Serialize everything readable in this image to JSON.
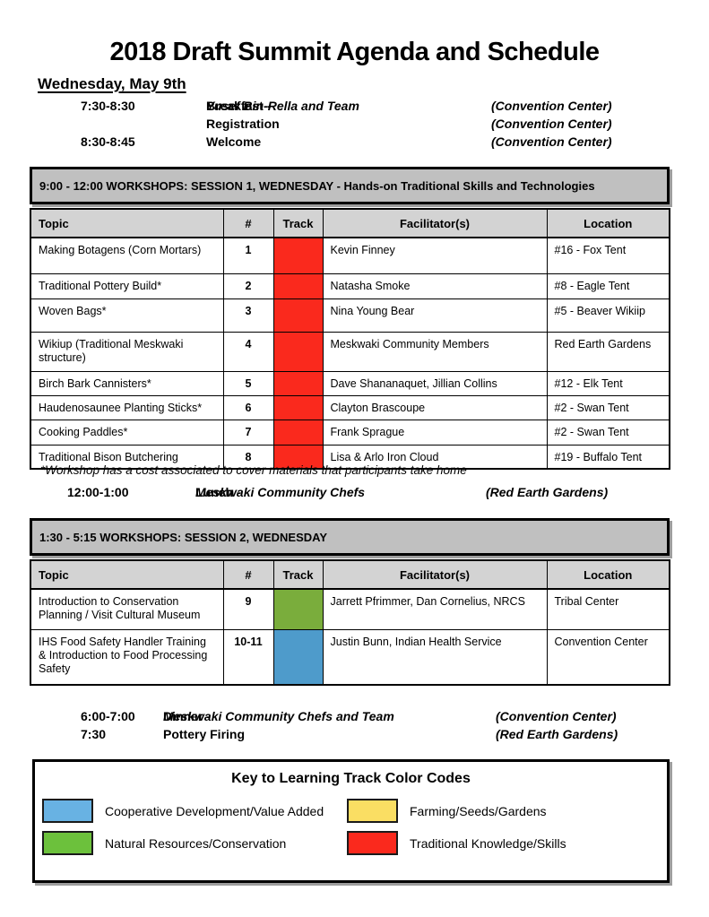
{
  "title": "2018 Draft Summit Agenda and Schedule",
  "day_heading": "Wednesday, May 9th",
  "morning_schedule": [
    {
      "time": "7:30-8:30",
      "label": "Breakfast - ",
      "label_italic": "Yusef Bin-Rella and Team",
      "location": "(Convention Center)"
    },
    {
      "time": "",
      "label": "Registration",
      "label_italic": "",
      "location": "(Convention Center)"
    },
    {
      "time": "8:30-8:45",
      "label": "Welcome",
      "label_italic": "",
      "location": "(Convention Center)"
    }
  ],
  "session1": {
    "header": "9:00 - 12:00 WORKSHOPS: SESSION 1, WEDNESDAY - Hands-on Traditional Skills and Technologies",
    "columns": [
      "Topic",
      "#",
      "Track",
      "Facilitator(s)",
      "Location"
    ],
    "rows": [
      {
        "topic": "Making Botagens (Corn Mortars)",
        "num": "1",
        "track": "red",
        "facilitators": "Kevin Finney",
        "location": "#16 - Fox Tent"
      },
      {
        "topic": "Traditional Pottery Build*",
        "num": "2",
        "track": "red",
        "facilitators": "Natasha Smoke",
        "location": "#8 - Eagle Tent"
      },
      {
        "topic": "Woven Bags*",
        "num": "3",
        "track": "red",
        "facilitators": "Nina Young Bear",
        "location": "#5 - Beaver Wikiip"
      },
      {
        "topic": "Wikiup (Traditional Meskwaki structure)",
        "num": "4",
        "track": "red",
        "facilitators": "Meskwaki Community Members",
        "location": "Red Earth Gardens"
      },
      {
        "topic": "Birch Bark Cannisters*",
        "num": "5",
        "track": "red",
        "facilitators": "Dave Shananaquet, Jillian Collins",
        "location": "#12 - Elk Tent"
      },
      {
        "topic": "Haudenosaunee Planting Sticks*",
        "num": "6",
        "track": "red",
        "facilitators": "Clayton Brascoupe",
        "location": "#2 - Swan Tent"
      },
      {
        "topic": "Cooking Paddles*",
        "num": "7",
        "track": "red",
        "facilitators": "Frank Sprague",
        "location": "#2 - Swan Tent"
      },
      {
        "topic": "Traditional Bison Butchering",
        "num": "8",
        "track": "red",
        "facilitators": "Lisa & Arlo Iron Cloud",
        "location": "#19 - Buffalo Tent"
      }
    ]
  },
  "footnote": "*Workshop has a cost associated to cover materials that participants take home",
  "lunch": {
    "time": "12:00-1:00",
    "label": "Lunch - ",
    "label_italic": "Meskwaki Community Chefs",
    "location": "(Red Earth Gardens)"
  },
  "session2": {
    "header": "1:30 - 5:15 WORKSHOPS: SESSION 2, WEDNESDAY",
    "columns": [
      "Topic",
      "#",
      "Track",
      "Facilitator(s)",
      "Location"
    ],
    "rows": [
      {
        "topic": "Introduction to Conservation Planning / Visit Cultural Museum",
        "num": "9",
        "track": "green",
        "facilitators": "Jarrett Pfrimmer, Dan Cornelius, NRCS",
        "location": "Tribal Center"
      },
      {
        "topic": "IHS Food Safety Handler Training & Introduction to Food Processing Safety",
        "num": "10-11",
        "track": "blue",
        "facilitators": "Justin Bunn, Indian Health Service",
        "location": "Convention Center"
      }
    ]
  },
  "evening_schedule": [
    {
      "time": "6:00-7:00",
      "label": "Dinner - ",
      "label_italic": "Meskwaki Community Chefs and Team",
      "location": "(Convention Center)"
    },
    {
      "time": "7:30",
      "label": "Pottery Firing",
      "label_italic": "",
      "location": "(Red Earth Gardens)"
    }
  ],
  "key": {
    "title": "Key to Learning Track Color Codes",
    "items": [
      {
        "label": "Cooperative Development/Value Added",
        "color": "#68b2e3"
      },
      {
        "label": "Farming/Seeds/Gardens",
        "color": "#fade63"
      },
      {
        "label": "Natural Resources/Conservation",
        "color": "#6cc13c"
      },
      {
        "label": "Traditional Knowledge/Skills",
        "color": "#fa291d"
      }
    ]
  },
  "track_colors": {
    "red": "#fa291d",
    "green": "#7aad3c",
    "blue": "#4e9bcb"
  }
}
